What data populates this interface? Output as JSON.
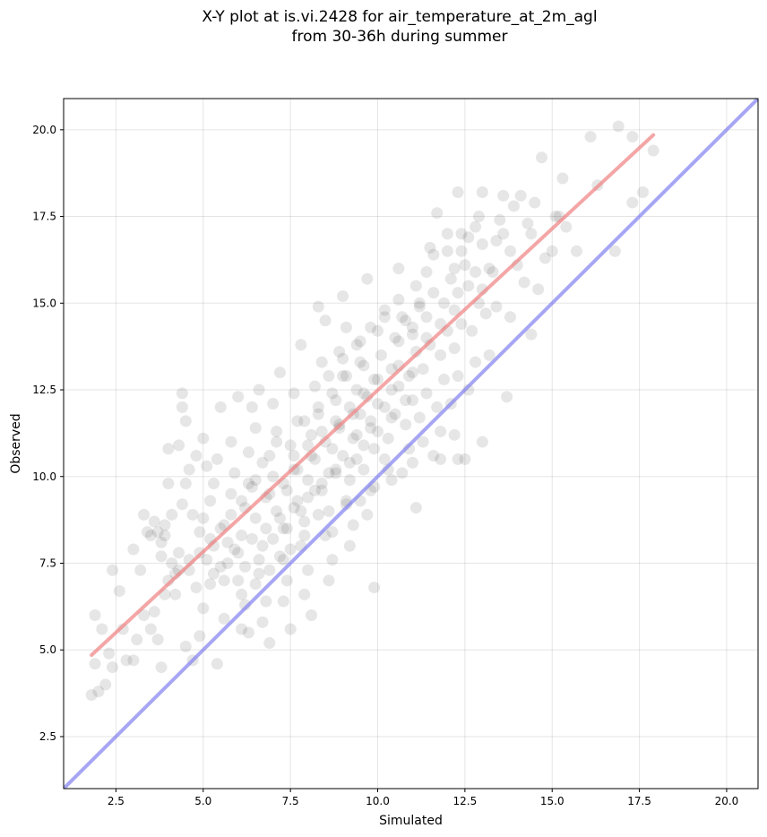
{
  "chart_data": {
    "type": "scatter",
    "title": "X-Y plot at is.vi.2428 for air_temperature_at_2m_agl",
    "subtitle": "from 30-36h during summer",
    "xlabel": "Simulated",
    "ylabel": "Observed",
    "xlim": [
      1.0,
      20.9
    ],
    "ylim": [
      1.0,
      20.9
    ],
    "x_ticks": [
      2.5,
      5.0,
      7.5,
      10.0,
      12.5,
      15.0,
      17.5,
      20.0
    ],
    "y_ticks": [
      2.5,
      5.0,
      7.5,
      10.0,
      12.5,
      15.0,
      17.5,
      20.0
    ],
    "x_tick_labels": [
      "2.5",
      "5.0",
      "7.5",
      "10.0",
      "12.5",
      "15.0",
      "17.5",
      "20.0"
    ],
    "y_tick_labels": [
      "2.5",
      "5.0",
      "7.5",
      "10.0",
      "12.5",
      "15.0",
      "17.5",
      "20.0"
    ],
    "grid": true,
    "colors": {
      "points": "#333333",
      "fit_line": "#f08080",
      "identity_line": "#8080f0"
    },
    "fit_line": {
      "x": [
        1.8,
        17.9
      ],
      "y": [
        4.85,
        19.85
      ]
    },
    "identity_line": {
      "x": [
        1.0,
        20.9
      ],
      "y": [
        1.0,
        20.9
      ]
    },
    "points": [
      [
        1.8,
        3.7
      ],
      [
        2.0,
        3.8
      ],
      [
        1.9,
        4.6
      ],
      [
        2.2,
        4.0
      ],
      [
        2.4,
        4.5
      ],
      [
        2.3,
        4.9
      ],
      [
        1.9,
        6.0
      ],
      [
        2.1,
        5.6
      ],
      [
        2.4,
        7.3
      ],
      [
        2.6,
        6.7
      ],
      [
        2.8,
        4.7
      ],
      [
        3.0,
        4.7
      ],
      [
        2.7,
        5.6
      ],
      [
        3.1,
        5.3
      ],
      [
        3.3,
        6.0
      ],
      [
        3.0,
        7.9
      ],
      [
        3.2,
        7.3
      ],
      [
        3.4,
        8.4
      ],
      [
        3.5,
        8.3
      ],
      [
        3.9,
        8.3
      ],
      [
        3.7,
        8.4
      ],
      [
        3.6,
        8.7
      ],
      [
        3.3,
        8.9
      ],
      [
        3.9,
        8.6
      ],
      [
        3.8,
        8.1
      ],
      [
        3.5,
        5.6
      ],
      [
        3.8,
        4.5
      ],
      [
        3.7,
        5.3
      ],
      [
        3.6,
        6.1
      ],
      [
        3.9,
        6.6
      ],
      [
        4.0,
        7.0
      ],
      [
        4.2,
        7.2
      ],
      [
        4.1,
        7.5
      ],
      [
        4.3,
        7.8
      ],
      [
        4.0,
        9.8
      ],
      [
        4.4,
        9.2
      ],
      [
        4.5,
        9.8
      ],
      [
        4.3,
        10.9
      ],
      [
        4.5,
        11.6
      ],
      [
        4.4,
        12.0
      ],
      [
        4.4,
        12.4
      ],
      [
        4.0,
        10.8
      ],
      [
        4.6,
        10.2
      ],
      [
        4.8,
        10.6
      ],
      [
        4.7,
        8.9
      ],
      [
        4.9,
        8.4
      ],
      [
        4.6,
        7.3
      ],
      [
        4.8,
        6.8
      ],
      [
        4.5,
        5.1
      ],
      [
        4.7,
        4.7
      ],
      [
        4.9,
        5.4
      ],
      [
        5.0,
        6.2
      ],
      [
        5.2,
        6.9
      ],
      [
        5.1,
        7.6
      ],
      [
        5.3,
        8.0
      ],
      [
        5.0,
        8.8
      ],
      [
        5.2,
        9.3
      ],
      [
        5.3,
        9.8
      ],
      [
        5.1,
        10.3
      ],
      [
        5.4,
        10.5
      ],
      [
        5.0,
        11.1
      ],
      [
        5.5,
        12.0
      ],
      [
        5.4,
        4.6
      ],
      [
        5.6,
        5.9
      ],
      [
        5.5,
        7.4
      ],
      [
        5.7,
        8.1
      ],
      [
        5.6,
        8.6
      ],
      [
        5.8,
        9.5
      ],
      [
        5.9,
        10.1
      ],
      [
        5.8,
        11.0
      ],
      [
        6.0,
        12.3
      ],
      [
        5.9,
        7.9
      ],
      [
        6.1,
        8.3
      ],
      [
        6.0,
        7.0
      ],
      [
        6.2,
        6.3
      ],
      [
        6.1,
        5.6
      ],
      [
        6.3,
        5.5
      ],
      [
        6.2,
        9.1
      ],
      [
        6.4,
        9.7
      ],
      [
        6.3,
        10.7
      ],
      [
        6.5,
        11.4
      ],
      [
        6.4,
        12.0
      ],
      [
        6.6,
        12.5
      ],
      [
        6.5,
        8.8
      ],
      [
        6.7,
        8.0
      ],
      [
        6.6,
        7.2
      ],
      [
        6.8,
        6.4
      ],
      [
        6.7,
        5.8
      ],
      [
        6.9,
        5.2
      ],
      [
        6.8,
        9.4
      ],
      [
        7.0,
        10.0
      ],
      [
        6.9,
        10.6
      ],
      [
        7.1,
        11.3
      ],
      [
        7.0,
        12.1
      ],
      [
        7.2,
        13.0
      ],
      [
        7.1,
        9.0
      ],
      [
        7.3,
        8.5
      ],
      [
        7.2,
        7.7
      ],
      [
        7.4,
        7.0
      ],
      [
        7.3,
        6.4
      ],
      [
        7.5,
        5.6
      ],
      [
        7.4,
        9.6
      ],
      [
        7.6,
        10.2
      ],
      [
        7.5,
        10.9
      ],
      [
        7.7,
        11.6
      ],
      [
        7.6,
        12.4
      ],
      [
        7.8,
        13.8
      ],
      [
        7.7,
        9.3
      ],
      [
        7.9,
        8.7
      ],
      [
        7.8,
        8.0
      ],
      [
        8.0,
        7.3
      ],
      [
        7.9,
        6.6
      ],
      [
        8.1,
        6.0
      ],
      [
        8.0,
        9.9
      ],
      [
        8.2,
        10.5
      ],
      [
        8.1,
        11.2
      ],
      [
        8.3,
        11.8
      ],
      [
        8.2,
        12.6
      ],
      [
        8.4,
        13.3
      ],
      [
        8.3,
        14.9
      ],
      [
        8.5,
        14.5
      ],
      [
        8.4,
        9.6
      ],
      [
        8.6,
        9.0
      ],
      [
        8.5,
        8.3
      ],
      [
        8.7,
        7.6
      ],
      [
        8.6,
        7.0
      ],
      [
        8.8,
        10.2
      ],
      [
        8.7,
        10.8
      ],
      [
        8.9,
        11.5
      ],
      [
        8.8,
        12.2
      ],
      [
        9.0,
        12.9
      ],
      [
        8.9,
        13.6
      ],
      [
        9.1,
        14.3
      ],
      [
        9.0,
        15.2
      ],
      [
        9.2,
        9.9
      ],
      [
        9.1,
        9.3
      ],
      [
        9.3,
        8.6
      ],
      [
        9.2,
        8.0
      ],
      [
        9.4,
        10.5
      ],
      [
        9.3,
        11.1
      ],
      [
        9.5,
        11.8
      ],
      [
        9.4,
        12.5
      ],
      [
        9.6,
        13.2
      ],
      [
        9.5,
        13.9
      ],
      [
        9.7,
        15.7
      ],
      [
        9.6,
        10.2
      ],
      [
        9.8,
        9.6
      ],
      [
        9.7,
        8.9
      ],
      [
        9.9,
        10.8
      ],
      [
        9.8,
        11.4
      ],
      [
        10.0,
        12.1
      ],
      [
        9.9,
        12.8
      ],
      [
        10.1,
        13.5
      ],
      [
        10.0,
        14.2
      ],
      [
        10.2,
        14.8
      ],
      [
        9.9,
        6.8
      ],
      [
        10.2,
        10.5
      ],
      [
        10.4,
        9.9
      ],
      [
        10.3,
        11.1
      ],
      [
        10.5,
        11.8
      ],
      [
        10.4,
        12.5
      ],
      [
        10.6,
        13.2
      ],
      [
        10.5,
        14.0
      ],
      [
        10.7,
        14.6
      ],
      [
        10.6,
        16.0
      ],
      [
        10.7,
        10.1
      ],
      [
        10.9,
        10.8
      ],
      [
        10.8,
        11.5
      ],
      [
        11.0,
        12.2
      ],
      [
        10.9,
        12.9
      ],
      [
        11.1,
        13.6
      ],
      [
        11.0,
        14.3
      ],
      [
        11.2,
        15.0
      ],
      [
        11.1,
        9.1
      ],
      [
        11.0,
        10.4
      ],
      [
        11.3,
        11.0
      ],
      [
        11.2,
        11.7
      ],
      [
        11.4,
        12.4
      ],
      [
        11.3,
        13.1
      ],
      [
        11.5,
        13.8
      ],
      [
        11.4,
        14.6
      ],
      [
        11.6,
        15.3
      ],
      [
        11.5,
        16.6
      ],
      [
        11.7,
        17.6
      ],
      [
        11.6,
        10.6
      ],
      [
        11.8,
        11.3
      ],
      [
        11.7,
        12.0
      ],
      [
        11.9,
        12.8
      ],
      [
        11.8,
        13.5
      ],
      [
        12.0,
        14.2
      ],
      [
        11.9,
        15.0
      ],
      [
        12.1,
        15.7
      ],
      [
        12.0,
        16.5
      ],
      [
        11.8,
        10.5
      ],
      [
        12.2,
        11.2
      ],
      [
        12.1,
        12.1
      ],
      [
        12.3,
        12.9
      ],
      [
        12.2,
        13.7
      ],
      [
        12.4,
        14.4
      ],
      [
        12.3,
        15.3
      ],
      [
        12.5,
        16.1
      ],
      [
        12.4,
        17.0
      ],
      [
        12.3,
        18.2
      ],
      [
        12.3,
        10.5
      ],
      [
        12.5,
        10.5
      ],
      [
        12.6,
        12.5
      ],
      [
        12.8,
        13.3
      ],
      [
        12.7,
        14.2
      ],
      [
        12.9,
        15.0
      ],
      [
        12.8,
        15.9
      ],
      [
        13.0,
        16.7
      ],
      [
        12.9,
        17.5
      ],
      [
        13.0,
        18.2
      ],
      [
        13.0,
        11.0
      ],
      [
        13.2,
        13.5
      ],
      [
        13.1,
        14.7
      ],
      [
        13.3,
        15.9
      ],
      [
        13.4,
        16.8
      ],
      [
        13.5,
        17.4
      ],
      [
        13.6,
        18.1
      ],
      [
        13.8,
        16.5
      ],
      [
        13.9,
        17.8
      ],
      [
        13.7,
        12.3
      ],
      [
        13.8,
        14.6
      ],
      [
        14.0,
        16.1
      ],
      [
        14.1,
        18.1
      ],
      [
        14.3,
        17.3
      ],
      [
        14.2,
        15.6
      ],
      [
        14.4,
        14.1
      ],
      [
        14.5,
        17.9
      ],
      [
        14.6,
        15.4
      ],
      [
        14.7,
        19.2
      ],
      [
        14.8,
        16.3
      ],
      [
        15.0,
        16.5
      ],
      [
        15.1,
        17.5
      ],
      [
        15.3,
        18.6
      ],
      [
        15.2,
        17.5
      ],
      [
        15.7,
        16.5
      ],
      [
        16.1,
        19.8
      ],
      [
        16.3,
        18.4
      ],
      [
        16.8,
        16.5
      ],
      [
        16.9,
        20.1
      ],
      [
        17.3,
        17.9
      ],
      [
        17.3,
        19.8
      ],
      [
        17.6,
        18.2
      ],
      [
        17.9,
        19.4
      ],
      [
        5.6,
        7.0
      ],
      [
        6.0,
        7.8
      ],
      [
        6.4,
        8.2
      ],
      [
        6.8,
        8.5
      ],
      [
        7.2,
        8.8
      ],
      [
        7.6,
        9.1
      ],
      [
        8.0,
        9.4
      ],
      [
        8.4,
        9.8
      ],
      [
        8.8,
        10.1
      ],
      [
        9.2,
        10.4
      ],
      [
        9.6,
        10.9
      ],
      [
        10.0,
        11.3
      ],
      [
        10.4,
        11.7
      ],
      [
        10.8,
        12.2
      ],
      [
        6.2,
        7.4
      ],
      [
        6.6,
        7.6
      ],
      [
        7.0,
        8.2
      ],
      [
        7.4,
        8.5
      ],
      [
        7.8,
        9.0
      ],
      [
        8.2,
        9.6
      ],
      [
        8.6,
        10.1
      ],
      [
        9.0,
        10.6
      ],
      [
        9.4,
        11.2
      ],
      [
        9.8,
        11.6
      ],
      [
        10.2,
        12.0
      ],
      [
        10.6,
        12.6
      ],
      [
        11.0,
        13.0
      ],
      [
        7.6,
        10.6
      ],
      [
        8.0,
        10.9
      ],
      [
        8.4,
        11.3
      ],
      [
        8.8,
        11.6
      ],
      [
        9.2,
        12.0
      ],
      [
        9.6,
        12.4
      ],
      [
        10.0,
        12.8
      ],
      [
        10.4,
        13.1
      ],
      [
        7.9,
        11.6
      ],
      [
        8.3,
        12.0
      ],
      [
        8.7,
        12.4
      ],
      [
        9.1,
        12.9
      ],
      [
        9.5,
        13.3
      ],
      [
        6.9,
        9.5
      ],
      [
        7.3,
        9.8
      ],
      [
        7.7,
        10.2
      ],
      [
        8.1,
        10.6
      ],
      [
        8.5,
        11.0
      ],
      [
        8.9,
        11.4
      ],
      [
        9.3,
        11.8
      ],
      [
        9.7,
        12.3
      ],
      [
        6.3,
        9.8
      ],
      [
        6.7,
        10.4
      ],
      [
        7.1,
        11.0
      ],
      [
        5.8,
        8.9
      ],
      [
        6.1,
        9.3
      ],
      [
        6.5,
        9.9
      ],
      [
        5.2,
        8.2
      ],
      [
        5.5,
        8.5
      ],
      [
        4.9,
        7.8
      ],
      [
        4.6,
        7.6
      ],
      [
        4.3,
        7.3
      ],
      [
        4.1,
        8.9
      ],
      [
        3.8,
        7.7
      ],
      [
        4.2,
        6.6
      ],
      [
        5.3,
        7.2
      ],
      [
        5.7,
        7.5
      ],
      [
        8.6,
        12.9
      ],
      [
        9.0,
        13.4
      ],
      [
        9.4,
        13.8
      ],
      [
        9.8,
        14.3
      ],
      [
        10.2,
        14.6
      ],
      [
        10.6,
        15.1
      ],
      [
        11.2,
        14.9
      ],
      [
        11.6,
        16.4
      ],
      [
        12.0,
        17.0
      ],
      [
        12.4,
        16.5
      ],
      [
        12.8,
        17.2
      ],
      [
        13.2,
        16.0
      ],
      [
        10.6,
        13.9
      ],
      [
        11.0,
        14.1
      ],
      [
        11.4,
        14.0
      ],
      [
        11.8,
        14.4
      ],
      [
        12.2,
        14.8
      ],
      [
        12.6,
        15.5
      ],
      [
        13.0,
        15.4
      ],
      [
        13.4,
        14.9
      ],
      [
        7.5,
        7.9
      ],
      [
        7.9,
        8.3
      ],
      [
        8.3,
        8.9
      ],
      [
        8.7,
        8.4
      ],
      [
        9.1,
        9.2
      ],
      [
        9.5,
        9.3
      ],
      [
        9.9,
        9.7
      ],
      [
        10.3,
        10.2
      ],
      [
        6.1,
        6.6
      ],
      [
        6.5,
        6.9
      ],
      [
        6.9,
        7.3
      ],
      [
        7.3,
        7.6
      ],
      [
        10.8,
        14.5
      ],
      [
        11.1,
        15.5
      ],
      [
        11.4,
        15.9
      ],
      [
        12.6,
        16.9
      ],
      [
        12.2,
        16.0
      ],
      [
        13.6,
        17.0
      ],
      [
        14.4,
        17.0
      ],
      [
        15.4,
        17.2
      ]
    ]
  }
}
